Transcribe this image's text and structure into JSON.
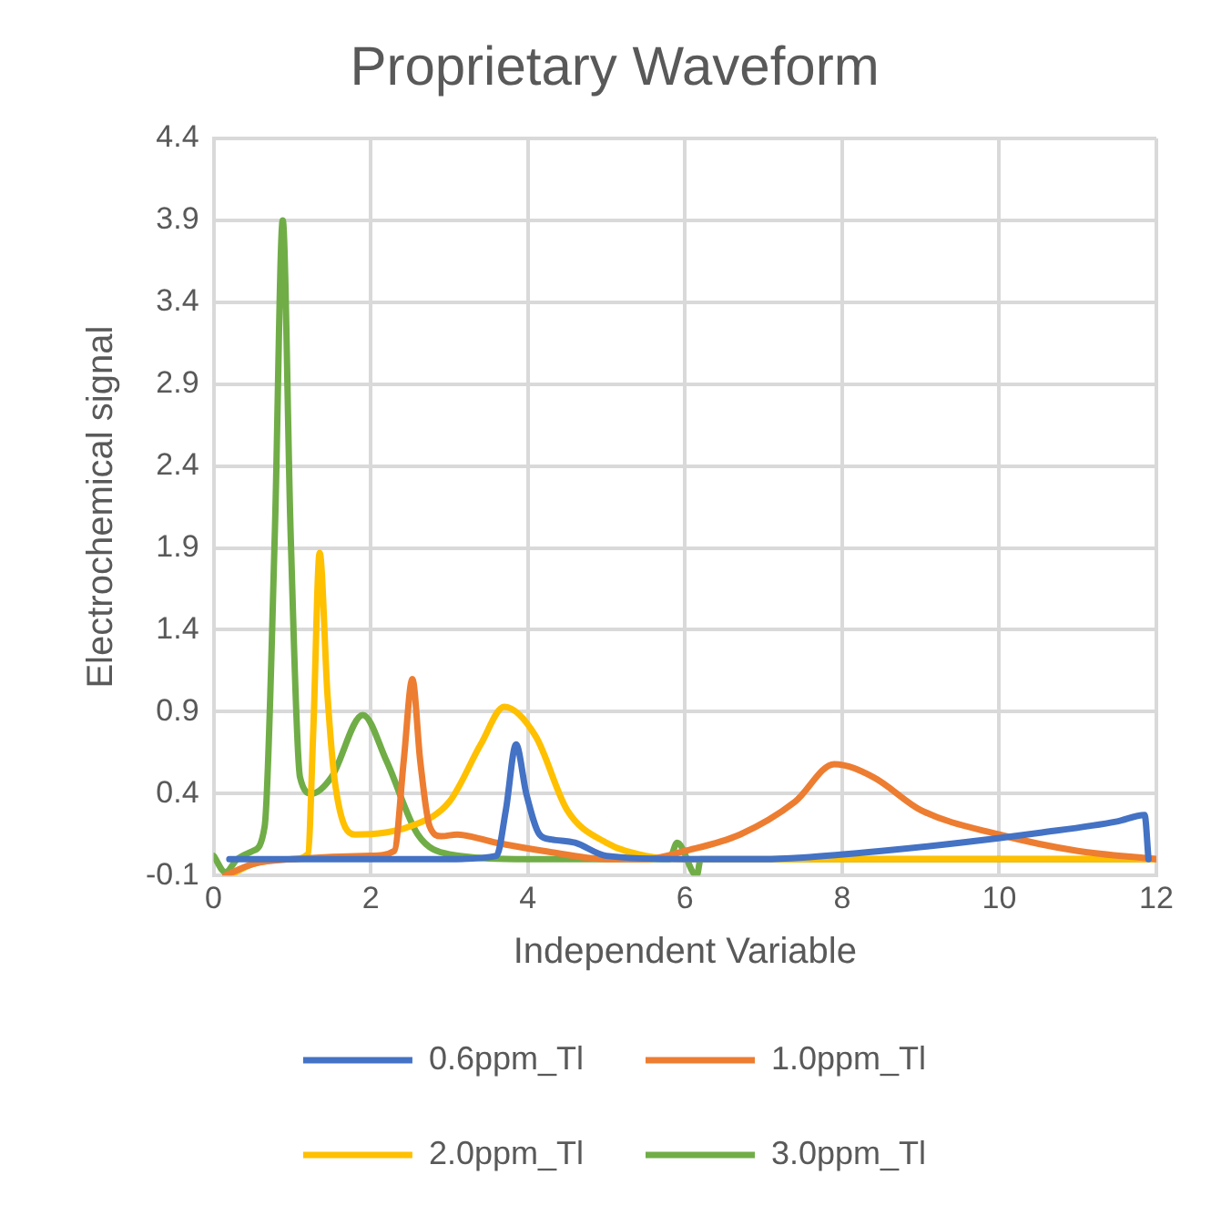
{
  "chart_data": {
    "type": "line",
    "title": "Proprietary Waveform",
    "xlabel": "Independent Variable",
    "ylabel": "Electrochemical signal",
    "xlim": [
      0,
      12
    ],
    "xticks": [
      0,
      2,
      4,
      6,
      8,
      10,
      12
    ],
    "ylim": [
      -0.1,
      4.4
    ],
    "yticks": [
      -0.1,
      0.4,
      0.9,
      1.4,
      1.9,
      2.4,
      2.9,
      3.4,
      3.9,
      4.4
    ],
    "grid": true,
    "legend": "bottom",
    "marker": "none",
    "line_style": "solid",
    "series": [
      {
        "name": "0.6ppm_Tl",
        "color": "#4472c4",
        "x": [
          0.2,
          1,
          2,
          3,
          3.6,
          3.72,
          3.85,
          3.98,
          4.15,
          4.3,
          4.6,
          5,
          6,
          7,
          7.5,
          8.5,
          9.5,
          10.5,
          11.5,
          11.85,
          11.9
        ],
        "values": [
          0,
          0,
          0,
          0,
          0.02,
          0.3,
          0.7,
          0.4,
          0.15,
          0.12,
          0.1,
          0.02,
          0,
          0,
          0.01,
          0.05,
          0.1,
          0.16,
          0.23,
          0.27,
          0
        ]
      },
      {
        "name": "1.0ppm_Tl",
        "color": "#ed7d31",
        "x": [
          0.15,
          0.5,
          1,
          2,
          2.3,
          2.42,
          2.53,
          2.63,
          2.75,
          2.9,
          3.1,
          3.6,
          4.2,
          5,
          5.5,
          6,
          6.7,
          7.4,
          7.9,
          8.4,
          9,
          10,
          11,
          12
        ],
        "values": [
          -0.1,
          -0.03,
          0,
          0.02,
          0.05,
          0.6,
          1.1,
          0.6,
          0.2,
          0.14,
          0.15,
          0.1,
          0.05,
          0,
          0,
          0.05,
          0.15,
          0.35,
          0.58,
          0.5,
          0.3,
          0.15,
          0.05,
          0
        ]
      },
      {
        "name": "2.0ppm_Tl",
        "color": "#ffc000",
        "x": [
          0.2,
          0.5,
          1,
          1.2,
          1.27,
          1.35,
          1.45,
          1.55,
          1.8,
          2.5,
          3,
          3.4,
          3.7,
          4.1,
          4.5,
          5,
          5.5,
          6,
          8,
          10,
          12
        ],
        "values": [
          -0.1,
          -0.03,
          0,
          0.03,
          0.8,
          1.87,
          1,
          0.45,
          0.15,
          0.2,
          0.35,
          0.7,
          0.93,
          0.75,
          0.3,
          0.1,
          0.02,
          0,
          0,
          0,
          0
        ]
      },
      {
        "name": "3.0ppm_Tl",
        "color": "#70ad47",
        "x": [
          0,
          0.15,
          0.3,
          0.5,
          0.65,
          0.78,
          0.88,
          0.98,
          1.1,
          1.25,
          1.5,
          1.9,
          2.2,
          2.6,
          3,
          4,
          5,
          5.8,
          5.9,
          6.15,
          6.2,
          8,
          10,
          12
        ],
        "values": [
          0.02,
          -0.08,
          0,
          0.05,
          0.2,
          2,
          3.9,
          2,
          0.5,
          0.4,
          0.5,
          0.88,
          0.6,
          0.15,
          0.03,
          0,
          0,
          0,
          0.1,
          -0.1,
          0,
          0,
          0,
          0
        ]
      }
    ]
  }
}
